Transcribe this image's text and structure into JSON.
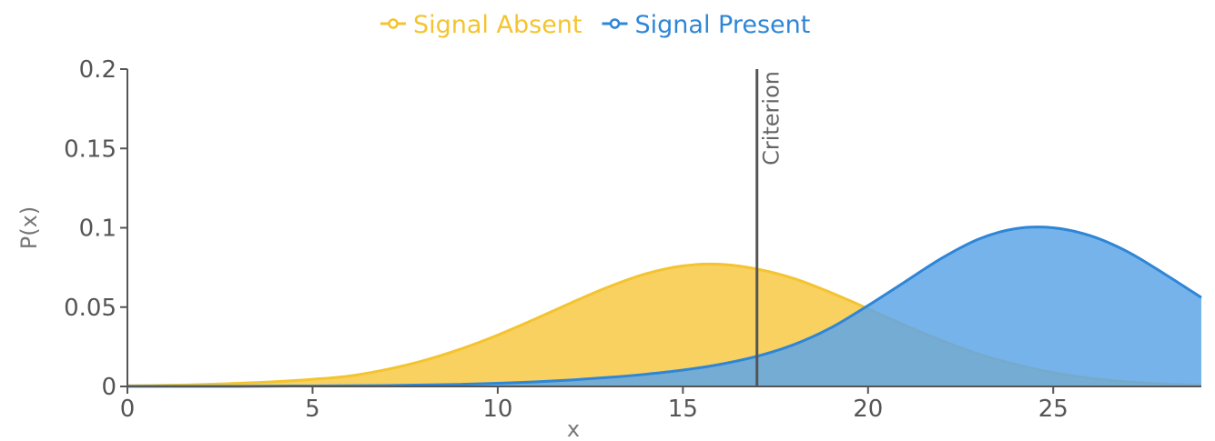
{
  "chart_data": {
    "type": "area",
    "title": "",
    "xlabel": "x",
    "ylabel": "P(x)",
    "xlim": [
      0,
      29
    ],
    "ylim": [
      0,
      0.2
    ],
    "x_ticks": [
      0,
      5,
      10,
      15,
      20,
      25
    ],
    "x_tick_labels": [
      "0",
      "5",
      "10",
      "15",
      "20",
      "25"
    ],
    "y_ticks": [
      0,
      0.05,
      0.1,
      0.15,
      0.2
    ],
    "y_tick_labels": [
      "0",
      "0.05",
      "0.1",
      "0.15",
      "0.2"
    ],
    "grid": false,
    "legend_position": "top-center",
    "series": [
      {
        "name": "Signal Absent",
        "color": "#f4c430",
        "fill": "#f9cf57",
        "x": [
          0,
          1,
          2,
          3,
          4,
          5,
          6,
          7,
          8,
          9,
          10,
          11,
          12,
          13,
          14,
          15,
          16,
          17,
          18,
          19,
          20,
          21,
          22,
          23,
          24,
          25,
          26,
          27,
          28,
          29
        ],
        "values": [
          0.0004,
          0.0007,
          0.0012,
          0.002,
          0.003,
          0.0045,
          0.0066,
          0.0107,
          0.0163,
          0.0236,
          0.0324,
          0.0424,
          0.0529,
          0.0628,
          0.071,
          0.076,
          0.077,
          0.074,
          0.068,
          0.0591,
          0.049,
          0.0385,
          0.0288,
          0.0203,
          0.0137,
          0.0087,
          0.0052,
          0.0029,
          0.0016,
          0.0008
        ]
      },
      {
        "name": "Signal Present",
        "color": "#2f86d6",
        "fill": "#5ea6e8",
        "x": [
          0,
          1,
          2,
          3,
          4,
          5,
          6,
          7,
          8,
          9,
          10,
          11,
          12,
          13,
          14,
          15,
          16,
          17,
          18,
          19,
          20,
          21,
          22,
          23,
          24,
          25,
          26,
          27,
          28,
          29
        ],
        "values": [
          0.0001,
          0.0001,
          0.0001,
          0.0001,
          0.0002,
          0.0003,
          0.0004,
          0.0006,
          0.0009,
          0.0013,
          0.002,
          0.0029,
          0.0041,
          0.0057,
          0.0077,
          0.0103,
          0.0139,
          0.019,
          0.0264,
          0.037,
          0.051,
          0.066,
          0.081,
          0.093,
          0.0995,
          0.1,
          0.095,
          0.085,
          0.071,
          0.056
        ]
      }
    ],
    "annotations": [
      {
        "type": "vertical-line",
        "x": 17,
        "label": "Criterion",
        "color": "#555555"
      }
    ]
  }
}
